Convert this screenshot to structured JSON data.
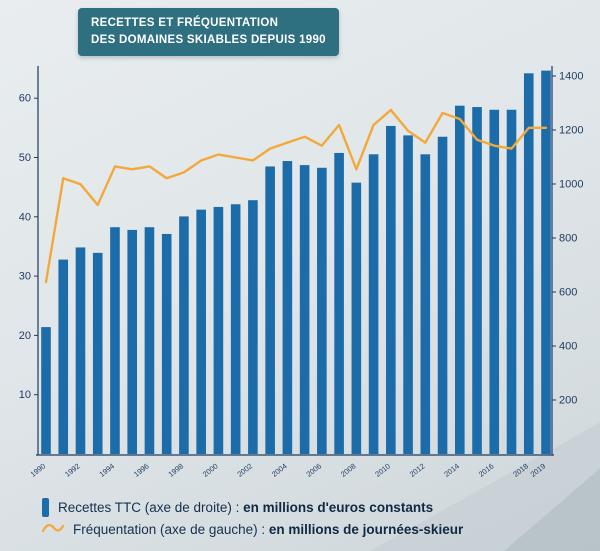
{
  "title": {
    "line1": "RECETTES ET FRÉQUENTATION",
    "line2": "DES DOMAINES SKIABLES DEPUIS 1990"
  },
  "colors": {
    "bar": "#1b6ca8",
    "line": "#f2a93b",
    "title_bg": "#2e6f80",
    "axis": "#1f3a5f",
    "tick_text": "#1f3a5f",
    "legend_text": "#15304e"
  },
  "legend": [
    {
      "icon": "bar-icon",
      "label": "Recettes TTC (axe de droite) : ",
      "bold": "en millions d'euros constants"
    },
    {
      "icon": "line-icon",
      "label": "Fréquentation (axe de gauche) : ",
      "bold": "en millions de journées-skieur"
    }
  ],
  "chart_data": {
    "type": "bar+line",
    "title": "Recettes et fréquentation des domaines skiables depuis 1990",
    "categories": [
      "1990",
      "1991",
      "1992",
      "1993",
      "1994",
      "1995",
      "1996",
      "1997",
      "1998",
      "1999",
      "2000",
      "2001",
      "2002",
      "2003",
      "2004",
      "2005",
      "2006",
      "2007",
      "2008",
      "2009",
      "2010",
      "2011",
      "2012",
      "2013",
      "2014",
      "2015",
      "2016",
      "2017",
      "2018",
      "2019"
    ],
    "series": [
      {
        "name": "Recettes TTC",
        "type": "bar",
        "axis": "right",
        "unit": "millions d'euros constants",
        "values": [
          470,
          720,
          765,
          745,
          840,
          830,
          840,
          815,
          880,
          905,
          915,
          925,
          940,
          1065,
          1085,
          1070,
          1060,
          1115,
          1005,
          1110,
          1215,
          1180,
          1110,
          1175,
          1290,
          1285,
          1275,
          1275,
          1410,
          1420
        ]
      },
      {
        "name": "Fréquentation",
        "type": "line",
        "axis": "left",
        "unit": "millions de journées-skieur",
        "values": [
          29,
          46.5,
          45.5,
          42,
          48.5,
          48,
          48.5,
          46.5,
          47.5,
          49.5,
          50.5,
          50,
          49.5,
          51.5,
          52.5,
          53.5,
          52,
          55.5,
          48,
          55.5,
          58,
          54.5,
          52.5,
          57.5,
          56.5,
          53,
          52,
          51.5,
          55,
          55
        ]
      }
    ],
    "left_axis": {
      "ticks": [
        10,
        20,
        30,
        40,
        50,
        60
      ],
      "range": [
        0,
        65
      ]
    },
    "right_axis": {
      "ticks": [
        200,
        400,
        600,
        800,
        1000,
        1200,
        1400
      ],
      "range": [
        0,
        1430
      ]
    },
    "x_tick_labels": [
      "1990",
      "1992",
      "1994",
      "1996",
      "1998",
      "2000",
      "2002",
      "2004",
      "2006",
      "2008",
      "2010",
      "2012",
      "2014",
      "2016",
      "2018",
      "2019"
    ],
    "grid": false,
    "legend_position": "bottom"
  }
}
